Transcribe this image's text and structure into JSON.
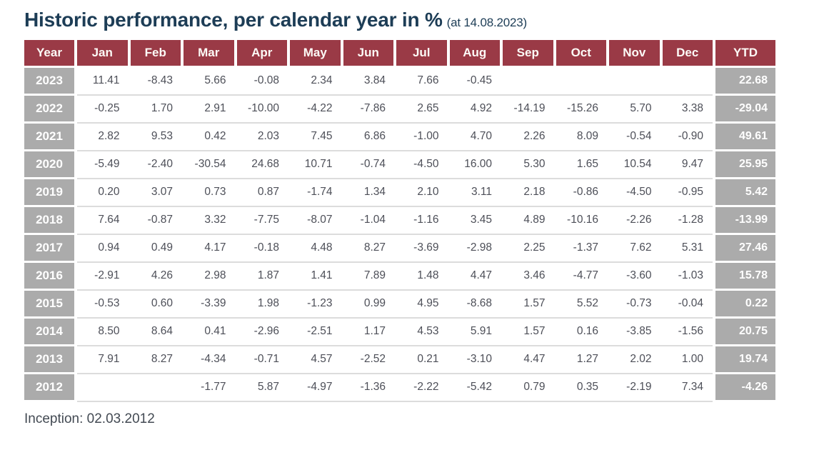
{
  "title": "Historic performance, per calendar year in %",
  "title_suffix": "(at 14.08.2023)",
  "footer": "Inception: 02.03.2012",
  "colors": {
    "header_bg": "#9a3a46",
    "year_ytd_bg": "#ababab",
    "title_color": "#1d3d56",
    "data_text": "#4d4f58",
    "row_separator": "#dcdcdc"
  },
  "chart_data": {
    "type": "table",
    "columns": [
      "Year",
      "Jan",
      "Feb",
      "Mar",
      "Apr",
      "May",
      "Jun",
      "Jul",
      "Aug",
      "Sep",
      "Oct",
      "Nov",
      "Dec",
      "YTD"
    ],
    "rows": [
      {
        "year": "2023",
        "values": [
          "11.41",
          "-8.43",
          "5.66",
          "-0.08",
          "2.34",
          "3.84",
          "7.66",
          "-0.45",
          "",
          "",
          "",
          ""
        ],
        "ytd": "22.68"
      },
      {
        "year": "2022",
        "values": [
          "-0.25",
          "1.70",
          "2.91",
          "-10.00",
          "-4.22",
          "-7.86",
          "2.65",
          "4.92",
          "-14.19",
          "-15.26",
          "5.70",
          "3.38"
        ],
        "ytd": "-29.04"
      },
      {
        "year": "2021",
        "values": [
          "2.82",
          "9.53",
          "0.42",
          "2.03",
          "7.45",
          "6.86",
          "-1.00",
          "4.70",
          "2.26",
          "8.09",
          "-0.54",
          "-0.90"
        ],
        "ytd": "49.61"
      },
      {
        "year": "2020",
        "values": [
          "-5.49",
          "-2.40",
          "-30.54",
          "24.68",
          "10.71",
          "-0.74",
          "-4.50",
          "16.00",
          "5.30",
          "1.65",
          "10.54",
          "9.47"
        ],
        "ytd": "25.95"
      },
      {
        "year": "2019",
        "values": [
          "0.20",
          "3.07",
          "0.73",
          "0.87",
          "-1.74",
          "1.34",
          "2.10",
          "3.11",
          "2.18",
          "-0.86",
          "-4.50",
          "-0.95"
        ],
        "ytd": "5.42"
      },
      {
        "year": "2018",
        "values": [
          "7.64",
          "-0.87",
          "3.32",
          "-7.75",
          "-8.07",
          "-1.04",
          "-1.16",
          "3.45",
          "4.89",
          "-10.16",
          "-2.26",
          "-1.28"
        ],
        "ytd": "-13.99"
      },
      {
        "year": "2017",
        "values": [
          "0.94",
          "0.49",
          "4.17",
          "-0.18",
          "4.48",
          "8.27",
          "-3.69",
          "-2.98",
          "2.25",
          "-1.37",
          "7.62",
          "5.31"
        ],
        "ytd": "27.46"
      },
      {
        "year": "2016",
        "values": [
          "-2.91",
          "4.26",
          "2.98",
          "1.87",
          "1.41",
          "7.89",
          "1.48",
          "4.47",
          "3.46",
          "-4.77",
          "-3.60",
          "-1.03"
        ],
        "ytd": "15.78"
      },
      {
        "year": "2015",
        "values": [
          "-0.53",
          "0.60",
          "-3.39",
          "1.98",
          "-1.23",
          "0.99",
          "4.95",
          "-8.68",
          "1.57",
          "5.52",
          "-0.73",
          "-0.04"
        ],
        "ytd": "0.22"
      },
      {
        "year": "2014",
        "values": [
          "8.50",
          "8.64",
          "0.41",
          "-2.96",
          "-2.51",
          "1.17",
          "4.53",
          "5.91",
          "1.57",
          "0.16",
          "-3.85",
          "-1.56"
        ],
        "ytd": "20.75"
      },
      {
        "year": "2013",
        "values": [
          "7.91",
          "8.27",
          "-4.34",
          "-0.71",
          "4.57",
          "-2.52",
          "0.21",
          "-3.10",
          "4.47",
          "1.27",
          "2.02",
          "1.00"
        ],
        "ytd": "19.74"
      },
      {
        "year": "2012",
        "values": [
          "",
          "",
          "-1.77",
          "5.87",
          "-4.97",
          "-1.36",
          "-2.22",
          "-5.42",
          "0.79",
          "0.35",
          "-2.19",
          "7.34"
        ],
        "ytd": "-4.26"
      }
    ]
  }
}
